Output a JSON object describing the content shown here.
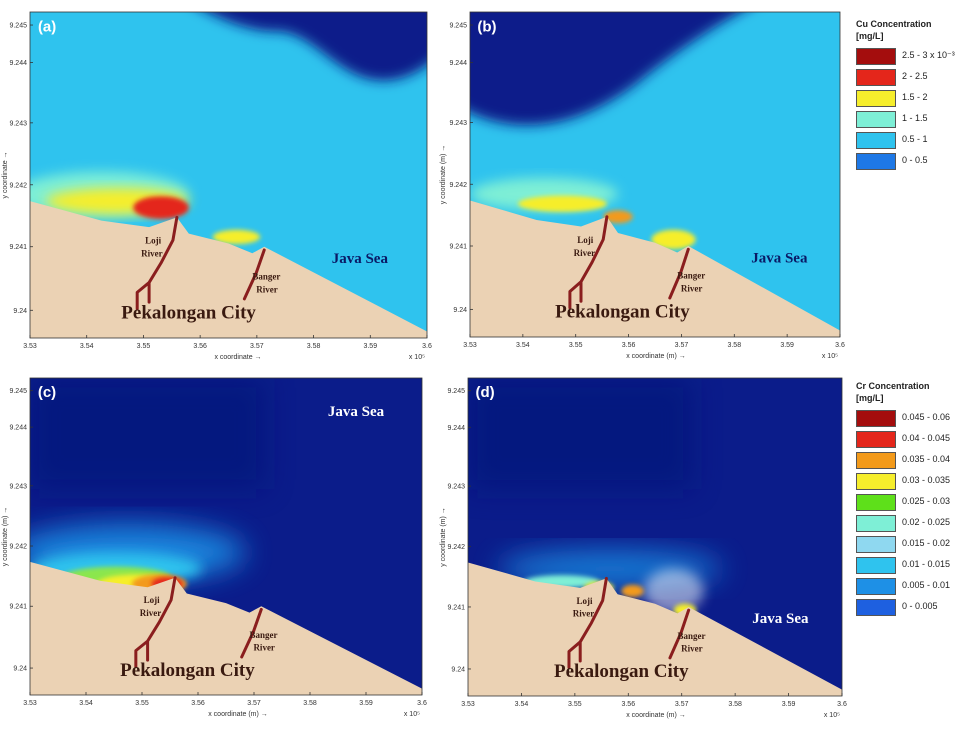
{
  "colors": {
    "land": "#EBD2B4",
    "ocean_light": "#2FC3EE",
    "ocean_mid": "#1E90E6",
    "ocean_dark": "#0B1C8A",
    "ocean_deep": "#061578",
    "river": "#8A1E1E",
    "hot_red": "#E4261B",
    "hot_orange": "#F39A1A",
    "hot_yellow": "#F6EE2C",
    "hot_green": "#8BE64E",
    "hot_aqua": "#7EEFD6"
  },
  "panels": [
    {
      "label": "(a)",
      "background": "cyan",
      "xlabel": "x coordinate →",
      "ylabel": "y coordinate →",
      "sea_label": "Java Sea",
      "sea_pos": "right",
      "city": "Pekalongan City",
      "river1": [
        "Loji",
        "River"
      ],
      "river2": [
        "Banger",
        "River"
      ]
    },
    {
      "label": "(b)",
      "background": "cyan",
      "xlabel": "x coordinate (m) →",
      "ylabel": "y coordinate (m) →",
      "sea_label": "Java Sea",
      "sea_pos": "right",
      "city": "Pekalongan City",
      "river1": [
        "Loji",
        "River"
      ],
      "river2": [
        "Banger",
        "River"
      ]
    },
    {
      "label": "(c)",
      "background": "dark",
      "xlabel": "x coordinate (m) →",
      "ylabel": "y coordinate (m) →",
      "sea_label": "Java Sea",
      "sea_pos": "top",
      "city": "Pekalongan City",
      "river1": [
        "Loji",
        "River"
      ],
      "river2": [
        "Banger",
        "River"
      ]
    },
    {
      "label": "(d)",
      "background": "dark",
      "xlabel": "x coordinate (m) →",
      "ylabel": "y coordinate (m) →",
      "sea_label": "Java Sea",
      "sea_pos": "right",
      "city": "Pekalongan City",
      "river1": [
        "Loji",
        "River"
      ],
      "river2": [
        "Banger",
        "River"
      ]
    }
  ],
  "x_tick_labels": [
    "3.53",
    "3.54",
    "3.55",
    "3.56",
    "3.57",
    "3.58",
    "3.59",
    "3.6"
  ],
  "y_tick_labels": [
    "9.24",
    "9.241",
    "9.242",
    "9.243",
    "9.244",
    "9.245"
  ],
  "x_exponent": "x 10⁵",
  "cu_legend": {
    "title": "Cu Concentration",
    "unit": "[mg/L]",
    "items": [
      {
        "label": "2.5 - 3 x 10⁻³",
        "color": "#A40D0D"
      },
      {
        "label": "2 - 2.5",
        "color": "#E4261B"
      },
      {
        "label": "1.5 - 2",
        "color": "#F6EE2C"
      },
      {
        "label": "1 - 1.5",
        "color": "#7EEFD6"
      },
      {
        "label": "0.5 - 1",
        "color": "#2FC3EE"
      },
      {
        "label": "0 - 0.5",
        "color": "#1E78E6"
      }
    ]
  },
  "cr_legend": {
    "title": "Cr Concentration",
    "unit": "[mg/L]",
    "items": [
      {
        "label": "0.045 - 0.06",
        "color": "#A40D0D"
      },
      {
        "label": "0.04 - 0.045",
        "color": "#E4261B"
      },
      {
        "label": "0.035 - 0.04",
        "color": "#F39A1A"
      },
      {
        "label": "0.03 - 0.035",
        "color": "#F6EE2C"
      },
      {
        "label": "0.025 - 0.03",
        "color": "#5EE01A"
      },
      {
        "label": "0.02 - 0.025",
        "color": "#7EEFD6"
      },
      {
        "label": "0.015 - 0.02",
        "color": "#8FD8F0"
      },
      {
        "label": "0.01 - 0.015",
        "color": "#2FC3EE"
      },
      {
        "label": "0.005 - 0.01",
        "color": "#1E90E6"
      },
      {
        "label": "0 - 0.005",
        "color": "#1E60E0"
      }
    ]
  },
  "chart_data": [
    {
      "type": "heatmap",
      "panel": "(a)",
      "quantity": "Cu Concentration [mg/L]",
      "xlabel": "x coordinate",
      "ylabel": "y coordinate",
      "xlim": [
        353000,
        360000
      ],
      "ylim": [
        9239800,
        9245800
      ]
    },
    {
      "type": "heatmap",
      "panel": "(b)",
      "quantity": "Cu Concentration [mg/L]",
      "xlabel": "x coordinate (m)",
      "ylabel": "y coordinate (m)",
      "xlim": [
        353000,
        360000
      ],
      "ylim": [
        9239800,
        9245800
      ]
    },
    {
      "type": "heatmap",
      "panel": "(c)",
      "quantity": "Cr Concentration [mg/L]",
      "xlabel": "x coordinate (m)",
      "ylabel": "y coordinate (m)",
      "xlim": [
        353000,
        360000
      ],
      "ylim": [
        9239800,
        9245800
      ]
    },
    {
      "type": "heatmap",
      "panel": "(d)",
      "quantity": "Cr Concentration [mg/L]",
      "xlabel": "x coordinate (m)",
      "ylabel": "y coordinate (m)",
      "xlim": [
        353000,
        360000
      ],
      "ylim": [
        9239800,
        9245800
      ]
    }
  ]
}
